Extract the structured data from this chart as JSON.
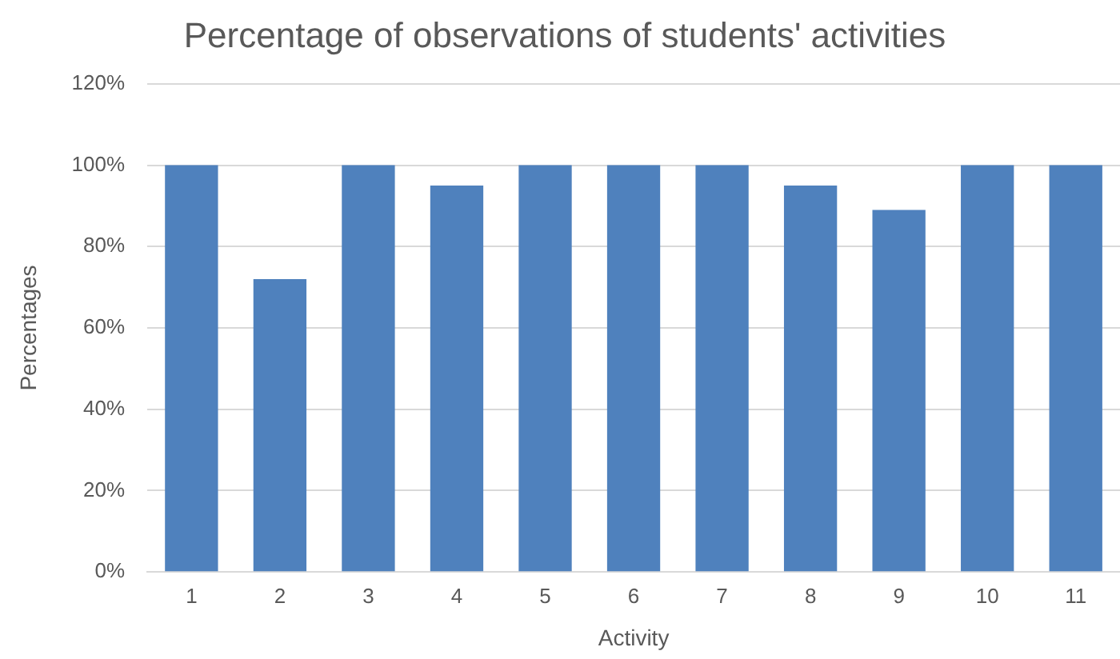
{
  "chart_data": {
    "type": "bar",
    "title": "Percentage of observations of students' activities",
    "xlabel": "Activity",
    "ylabel": "Percentages",
    "categories": [
      "1",
      "2",
      "3",
      "4",
      "5",
      "6",
      "7",
      "8",
      "9",
      "10",
      "11"
    ],
    "values": [
      100,
      72,
      100,
      95,
      100,
      100,
      100,
      95,
      89,
      100,
      100
    ],
    "color": "#4f81bd",
    "ylim": [
      0,
      120
    ],
    "yticks": [
      {
        "value": 0,
        "label": "0%"
      },
      {
        "value": 20,
        "label": "20%"
      },
      {
        "value": 40,
        "label": "40%"
      },
      {
        "value": 60,
        "label": "60%"
      },
      {
        "value": 80,
        "label": "80%"
      },
      {
        "value": 100,
        "label": "100%"
      },
      {
        "value": 120,
        "label": "120%"
      }
    ],
    "grid": "y"
  }
}
